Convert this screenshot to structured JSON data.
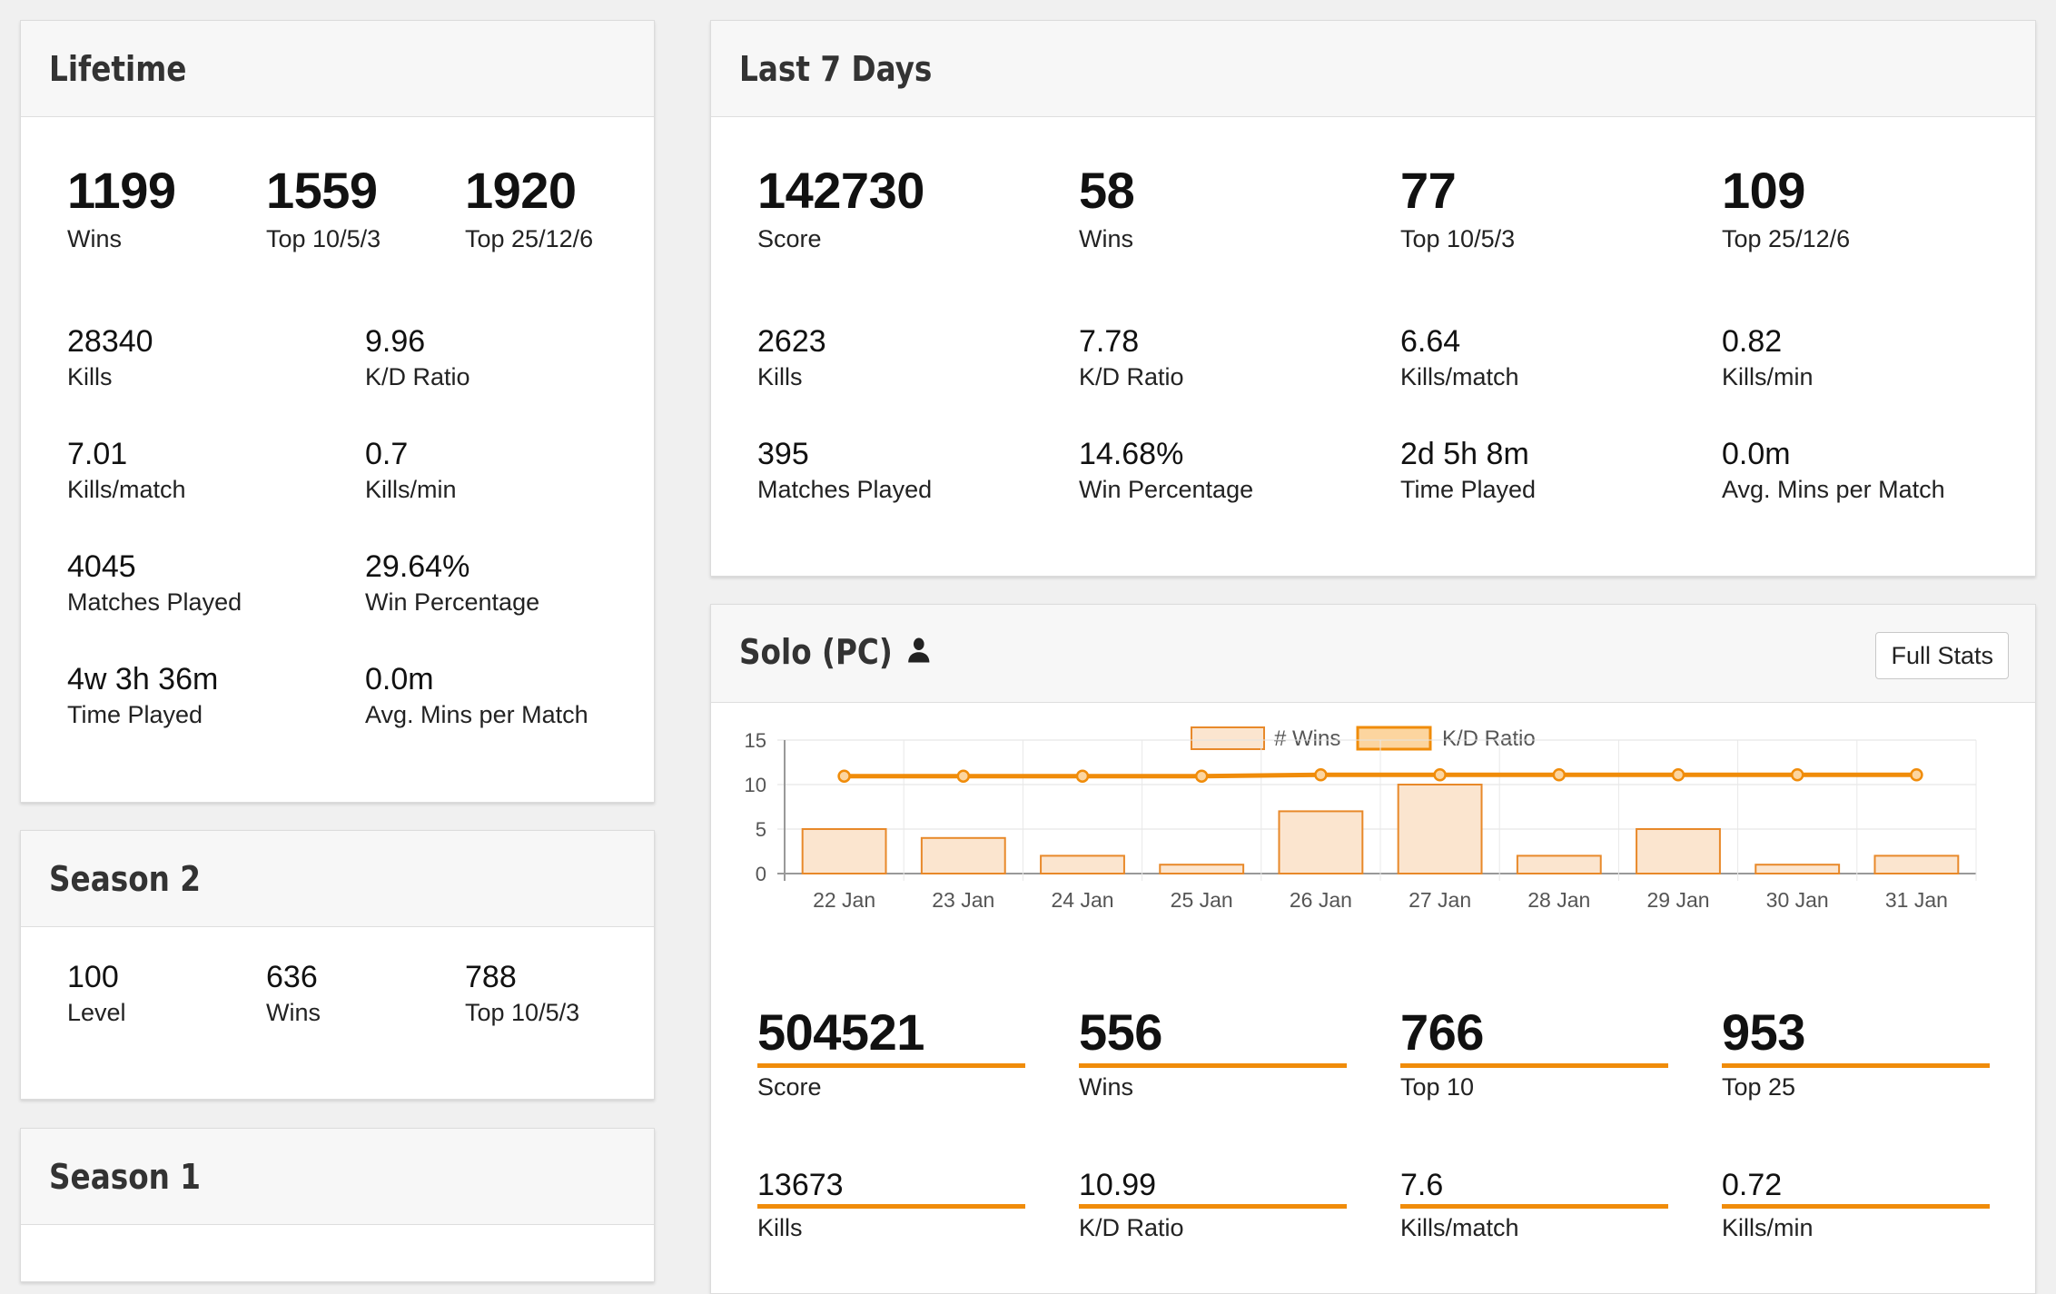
{
  "lifetime": {
    "title": "Lifetime",
    "top": [
      {
        "value": "1199",
        "label": "Wins"
      },
      {
        "value": "1559",
        "label": "Top 10/5/3"
      },
      {
        "value": "1920",
        "label": "Top 25/12/6"
      }
    ],
    "stats": [
      {
        "value": "28340",
        "label": "Kills"
      },
      {
        "value": "9.96",
        "label": "K/D Ratio"
      },
      {
        "value": "7.01",
        "label": "Kills/match"
      },
      {
        "value": "0.7",
        "label": "Kills/min"
      },
      {
        "value": "4045",
        "label": "Matches Played"
      },
      {
        "value": "29.64%",
        "label": "Win Percentage"
      },
      {
        "value": "4w 3h 36m",
        "label": "Time Played"
      },
      {
        "value": "0.0m",
        "label": "Avg. Mins per Match"
      }
    ]
  },
  "season2": {
    "title": "Season 2",
    "stats": [
      {
        "value": "100",
        "label": "Level"
      },
      {
        "value": "636",
        "label": "Wins"
      },
      {
        "value": "788",
        "label": "Top 10/5/3"
      }
    ]
  },
  "season1": {
    "title": "Season 1"
  },
  "last7": {
    "title": "Last 7 Days",
    "top": [
      {
        "value": "142730",
        "label": "Score"
      },
      {
        "value": "58",
        "label": "Wins"
      },
      {
        "value": "77",
        "label": "Top 10/5/3"
      },
      {
        "value": "109",
        "label": "Top 25/12/6"
      }
    ],
    "stats": [
      {
        "value": "2623",
        "label": "Kills"
      },
      {
        "value": "7.78",
        "label": "K/D Ratio"
      },
      {
        "value": "6.64",
        "label": "Kills/match"
      },
      {
        "value": "0.82",
        "label": "Kills/min"
      },
      {
        "value": "395",
        "label": "Matches Played"
      },
      {
        "value": "14.68%",
        "label": "Win Percentage"
      },
      {
        "value": "2d 5h 8m",
        "label": "Time Played"
      },
      {
        "value": "0.0m",
        "label": "Avg. Mins per Match"
      }
    ]
  },
  "solo": {
    "title": "Solo (PC)",
    "icon": "user-icon",
    "full_stats_label": "Full Stats",
    "top": [
      {
        "value": "504521",
        "label": "Score"
      },
      {
        "value": "556",
        "label": "Wins"
      },
      {
        "value": "766",
        "label": "Top 10"
      },
      {
        "value": "953",
        "label": "Top 25"
      }
    ],
    "stats": [
      {
        "value": "13673",
        "label": "Kills"
      },
      {
        "value": "10.99",
        "label": "K/D Ratio"
      },
      {
        "value": "7.6",
        "label": "Kills/match"
      },
      {
        "value": "0.72",
        "label": "Kills/min"
      }
    ]
  },
  "colors": {
    "accent": "#f08c0a",
    "bar_fill": "#fbe5cf",
    "bar_stroke": "#e8892a"
  },
  "chart_data": {
    "type": "bar",
    "categories": [
      "22 Jan",
      "23 Jan",
      "24 Jan",
      "25 Jan",
      "26 Jan",
      "27 Jan",
      "28 Jan",
      "29 Jan",
      "30 Jan",
      "31 Jan"
    ],
    "series": [
      {
        "name": "# Wins",
        "type": "bar",
        "values": [
          5,
          4,
          2,
          1,
          7,
          10,
          2,
          5,
          1,
          2
        ]
      },
      {
        "name": "K/D Ratio",
        "type": "line",
        "values": [
          10.95,
          10.95,
          10.95,
          10.95,
          11.1,
          11.1,
          11.1,
          11.1,
          11.1,
          11.1
        ]
      }
    ],
    "yticks": [
      "0",
      "5",
      "10",
      "15"
    ],
    "ylim": [
      0,
      15
    ],
    "grid": true,
    "legend": "top-center"
  }
}
